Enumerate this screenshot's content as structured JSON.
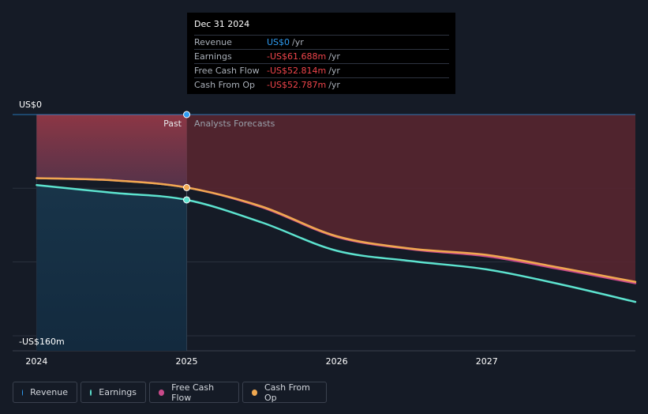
{
  "tooltip": {
    "date": "Dec 31 2024",
    "rows": [
      {
        "label": "Revenue",
        "value": "US$0",
        "unit": "/yr",
        "color": "#2e9cf2"
      },
      {
        "label": "Earnings",
        "value": "-US$61.688m",
        "unit": "/yr",
        "color": "#f0454b"
      },
      {
        "label": "Free Cash Flow",
        "value": "-US$52.814m",
        "unit": "/yr",
        "color": "#f0454b"
      },
      {
        "label": "Cash From Op",
        "value": "-US$52.787m",
        "unit": "/yr",
        "color": "#f0454b"
      }
    ]
  },
  "labels": {
    "past": "Past",
    "forecast": "Analysts Forecasts"
  },
  "chart_data": {
    "type": "line",
    "y_top_label": "US$0",
    "y_bottom_label": "-US$160m",
    "ylim": [
      -160,
      0
    ],
    "xlim": [
      2023.84,
      2027.99
    ],
    "x_ticks": [
      2024,
      2025,
      2026,
      2027
    ],
    "x_tick_labels": [
      "2024",
      "2025",
      "2026",
      "2027"
    ],
    "past_forecast_split": 2025,
    "series": [
      {
        "name": "Revenue",
        "color": "#2e9cf2",
        "values": [
          [
            2024,
            0
          ],
          [
            2025,
            0
          ],
          [
            2026,
            0
          ],
          [
            2027,
            0
          ],
          [
            2027.99,
            0
          ]
        ]
      },
      {
        "name": "Earnings",
        "color": "#5de3cf",
        "values": [
          [
            2024,
            -51
          ],
          [
            2024.5,
            -56.5
          ],
          [
            2025,
            -61.7
          ],
          [
            2025.5,
            -78
          ],
          [
            2026,
            -98.5
          ],
          [
            2026.5,
            -106
          ],
          [
            2027,
            -112
          ],
          [
            2027.5,
            -123
          ],
          [
            2027.99,
            -135.5
          ]
        ]
      },
      {
        "name": "Free Cash Flow",
        "color": "#c94a8a",
        "values": [
          [
            2024,
            -46
          ],
          [
            2024.5,
            -47.5
          ],
          [
            2025,
            -52.8
          ],
          [
            2025.5,
            -67
          ],
          [
            2026,
            -88.5
          ],
          [
            2026.5,
            -97.5
          ],
          [
            2027,
            -102.5
          ],
          [
            2027.5,
            -112
          ],
          [
            2027.99,
            -122
          ]
        ]
      },
      {
        "name": "Cash From Op",
        "color": "#f0a850",
        "values": [
          [
            2024,
            -46
          ],
          [
            2024.5,
            -47.5
          ],
          [
            2025,
            -52.8
          ],
          [
            2025.5,
            -66.5
          ],
          [
            2026,
            -88
          ],
          [
            2026.5,
            -97
          ],
          [
            2027,
            -101.5
          ],
          [
            2027.5,
            -111
          ],
          [
            2027.99,
            -121
          ]
        ]
      }
    ]
  },
  "legend": [
    {
      "label": "Revenue",
      "color": "#2e9cf2"
    },
    {
      "label": "Earnings",
      "color": "#5de3cf"
    },
    {
      "label": "Free Cash Flow",
      "color": "#c94a8a"
    },
    {
      "label": "Cash From Op",
      "color": "#f0a850"
    }
  ]
}
